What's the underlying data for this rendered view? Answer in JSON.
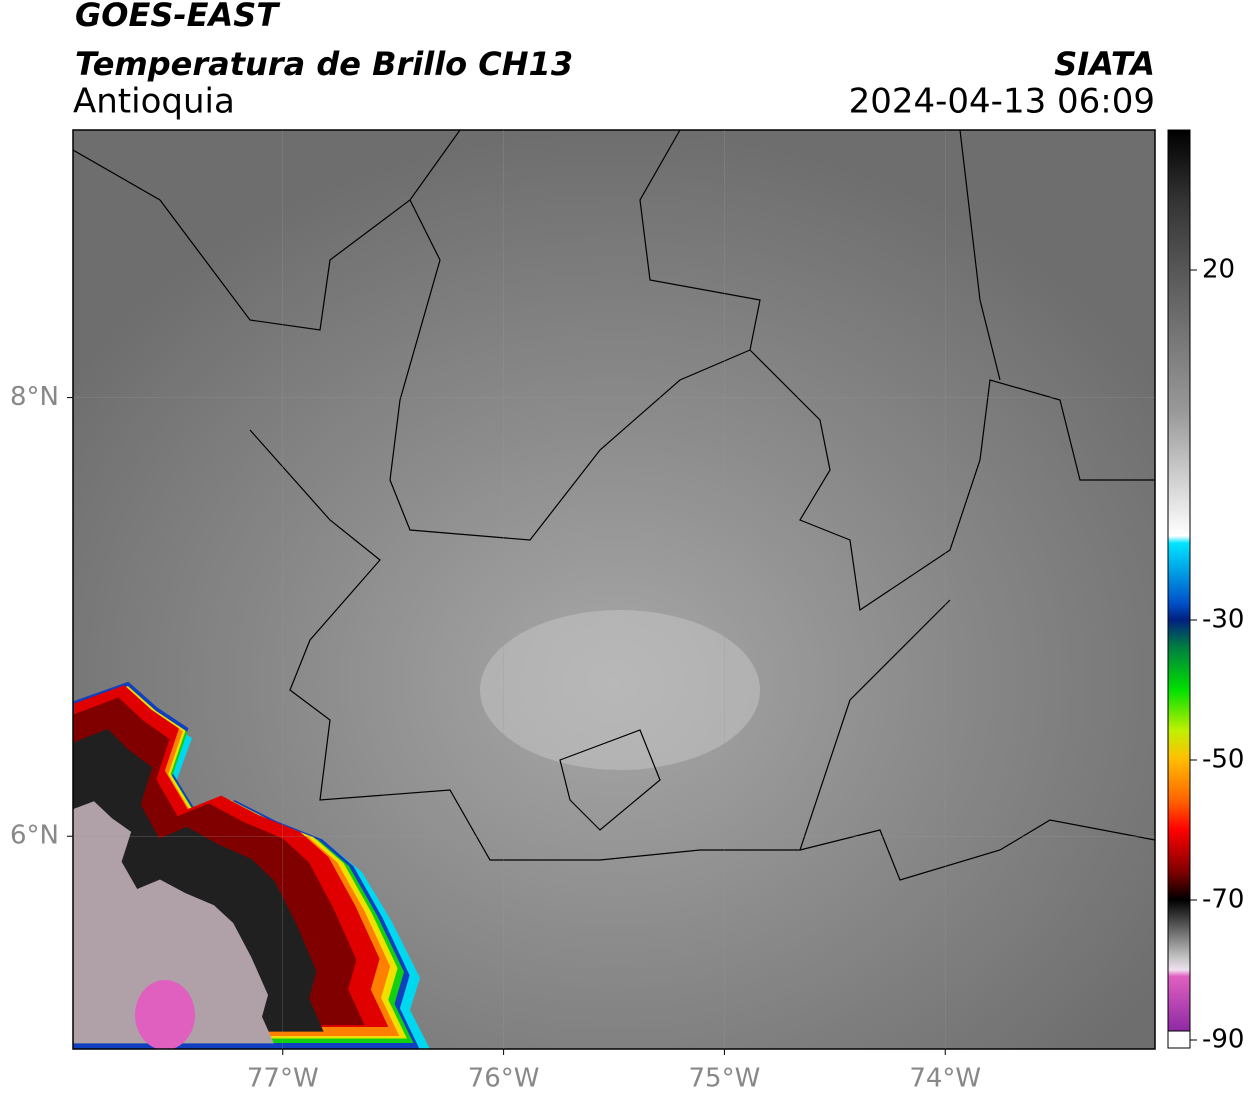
{
  "header": {
    "satellite": "GOES-EAST",
    "product": "Temperatura de Brillo CH13",
    "organization": "SIATA",
    "region": "Antioquia",
    "datetime": "2024-04-13 06:09"
  },
  "map": {
    "lon_range": [
      -77.95,
      -73.05
    ],
    "lat_range": [
      5.03,
      9.22
    ],
    "lon_ticks": [
      {
        "value": -77,
        "label": "77°W"
      },
      {
        "value": -76,
        "label": "76°W"
      },
      {
        "value": -75,
        "label": "75°W"
      },
      {
        "value": -74,
        "label": "74°W"
      }
    ],
    "lat_ticks": [
      {
        "value": 8,
        "label": "8°N"
      },
      {
        "value": 6,
        "label": "6°N"
      }
    ]
  },
  "colorbar": {
    "range": [
      -90,
      40
    ],
    "ticks": [
      20,
      -30,
      -50,
      -70,
      -90
    ]
  }
}
